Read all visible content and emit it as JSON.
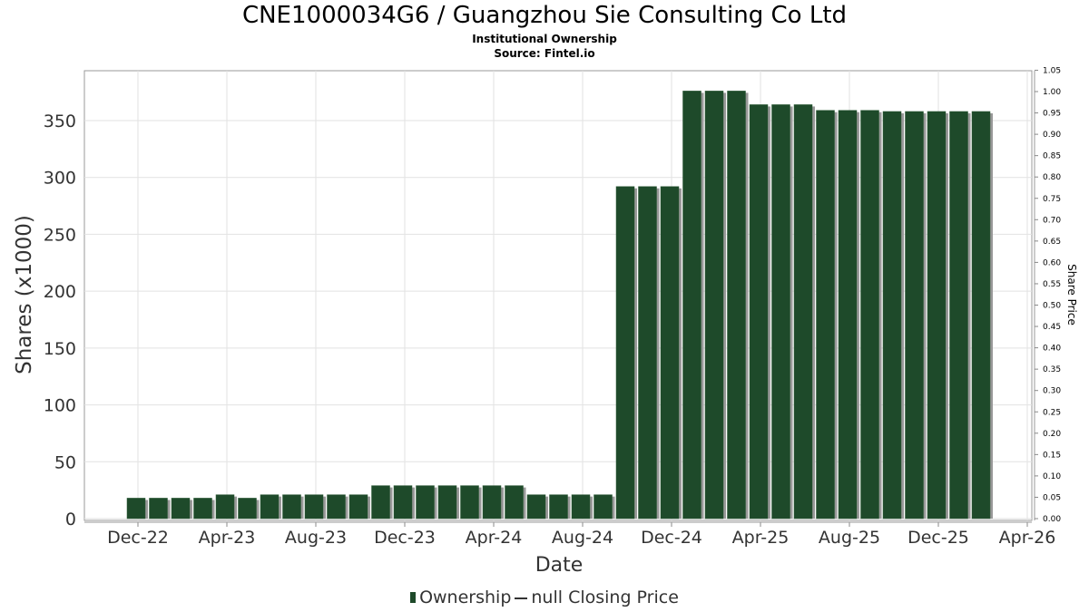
{
  "chart_data": {
    "type": "bar",
    "title": "CNE1000034G6 / Guangzhou Sie Consulting Co Ltd",
    "subtitle": [
      "Institutional Ownership",
      "Source: Fintel.io"
    ],
    "xlabel": "Date",
    "ylabel": "Shares (x1000)",
    "y2label": "Share Price",
    "ylim": [
      0,
      395
    ],
    "y2lim": [
      0,
      1.05
    ],
    "yticks": [
      0,
      50,
      100,
      150,
      200,
      250,
      300,
      350
    ],
    "y2ticks": [
      "0.00",
      "0.05",
      "0.10",
      "0.15",
      "0.20",
      "0.25",
      "0.30",
      "0.35",
      "0.40",
      "0.45",
      "0.50",
      "0.55",
      "0.60",
      "0.65",
      "0.70",
      "0.75",
      "0.80",
      "0.85",
      "0.90",
      "0.95",
      "1.00",
      "1.05"
    ],
    "xticks": [
      "Dec-22",
      "Apr-23",
      "Aug-23",
      "Dec-23",
      "Apr-24",
      "Aug-24",
      "Dec-24",
      "Apr-25",
      "Aug-25",
      "Dec-25",
      "Apr-26"
    ],
    "grid": true,
    "legend_position": "bottom",
    "series": [
      {
        "name": "Ownership",
        "color": "#1e4a2a",
        "start_month": "Dec-22",
        "values": [
          18,
          18,
          18,
          18,
          21,
          18,
          21,
          21,
          21,
          21,
          21,
          29,
          29,
          29,
          29,
          29,
          29,
          29,
          21,
          21,
          21,
          21,
          292,
          292,
          292,
          376,
          376,
          376,
          364,
          364,
          364,
          359,
          359,
          359,
          358,
          358,
          358,
          358,
          358
        ]
      },
      {
        "name": "null Closing Price",
        "values": []
      }
    ]
  }
}
